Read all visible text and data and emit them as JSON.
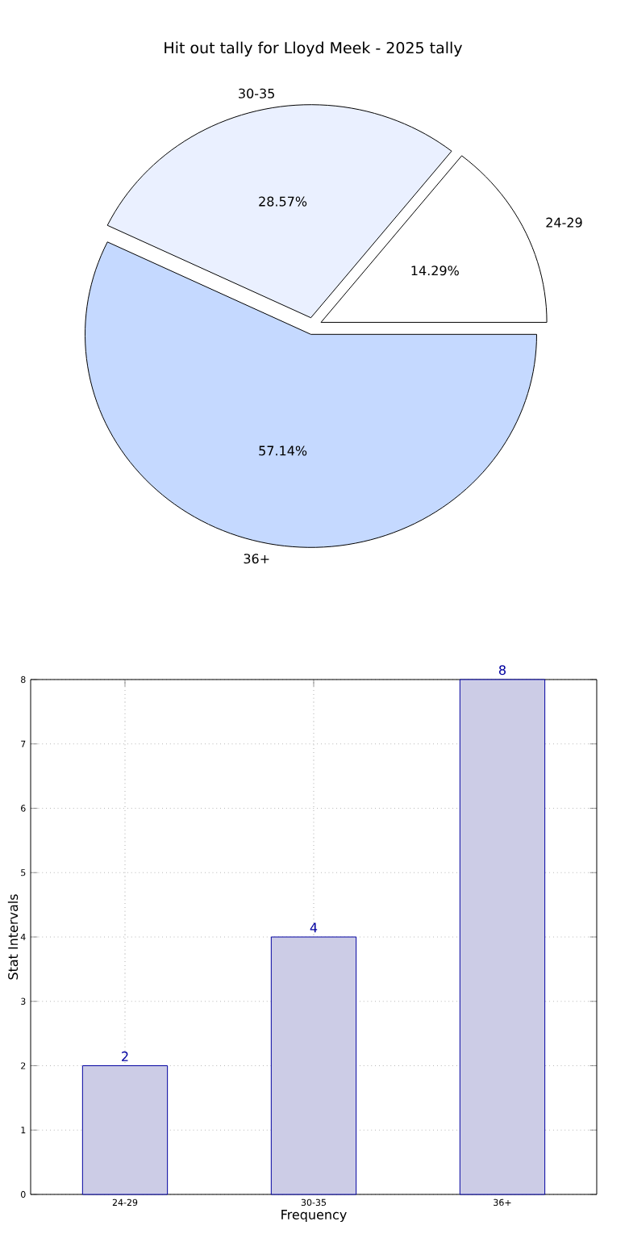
{
  "chart_data": [
    {
      "type": "pie",
      "title": "Hit out tally for Lloyd Meek - 2025 tally",
      "categories": [
        "24-29",
        "30-35",
        "36+"
      ],
      "values": [
        14.29,
        28.57,
        57.14
      ],
      "colors": [
        "#ffffff",
        "#eaf0ff",
        "#c5d9ff"
      ],
      "value_labels": [
        "14.29%",
        "28.57%",
        "57.14%"
      ]
    },
    {
      "type": "bar",
      "categories": [
        "24-29",
        "30-35",
        "36+"
      ],
      "values": [
        2,
        4,
        8
      ],
      "color": "#ccccE6",
      "xlabel": "Frequency",
      "ylabel": "Stat Intervals",
      "ylim": [
        0,
        8
      ],
      "yticks": [
        0,
        1,
        2,
        3,
        4,
        5,
        6,
        7,
        8
      ],
      "grid": true,
      "data_labels": true
    }
  ]
}
